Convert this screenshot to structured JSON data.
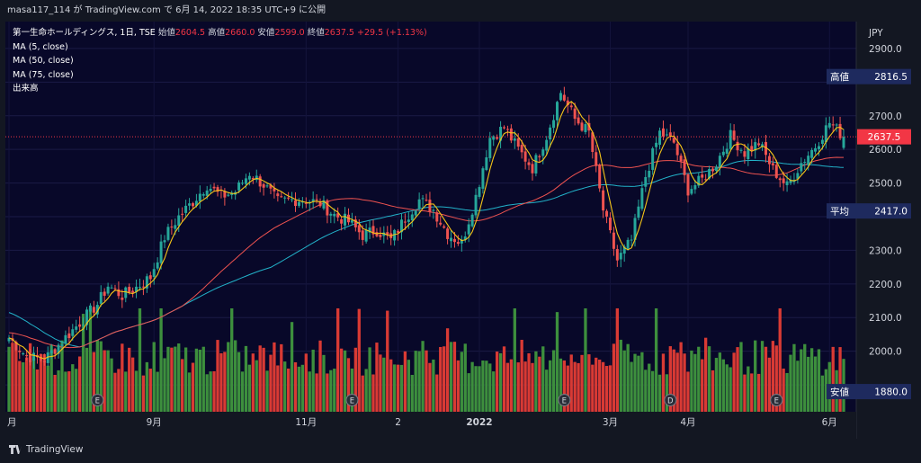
{
  "header": {
    "publish_line": "masa117_114 が TradingView.com で 6月 14, 2022 18:35 UTC+9 に公開"
  },
  "legend": {
    "symbol": "第一生命ホールディングス, 1日, TSE",
    "open_label": "始値",
    "open": "2604.5",
    "high_label": "高値",
    "high": "2660.0",
    "low_label": "安値",
    "low": "2599.0",
    "close_label": "終値",
    "close": "2637.5",
    "change": "+29.5 (+1.13%)",
    "indicators": [
      "MA (5, close)",
      "MA (50, close)",
      "MA (75, close)",
      "出来高"
    ]
  },
  "brand": {
    "name": "TradingView",
    "icon": "tradingview-logo-icon"
  },
  "colors": {
    "background": "#080829",
    "up": "#26a69a",
    "down": "#ef5350",
    "vol_up": "#3d8f3d",
    "vol_down": "#d93a34",
    "ma5": "#f5c518",
    "ma50": "#ef5350",
    "ma75": "#22b2c9",
    "price_tag": "#f23645",
    "label_bg": "#1e2a5e"
  },
  "chart_data": {
    "type": "candlestick",
    "currency": "JPY",
    "y_axis": {
      "ylim": [
        1820,
        2980
      ],
      "ticks": [
        1900,
        2000,
        2100,
        2200,
        2300,
        2400,
        2500,
        2600,
        2700,
        2800,
        2900
      ],
      "tick_labels": [
        "",
        "2000.0",
        "2100.0",
        "2200.0",
        "2300.0",
        "",
        "2500.0",
        "2600.0",
        "2700.0",
        "",
        "2900.0"
      ]
    },
    "x_axis": {
      "labels": [
        "月",
        "9月",
        "11月",
        "2",
        "2022",
        "3月",
        "4月",
        "6月"
      ]
    },
    "price_labels": [
      {
        "name": "高値",
        "value": "2816.5",
        "y": 2816.5
      },
      {
        "name": "",
        "value": "2637.5",
        "y": 2637.5,
        "style": "current"
      },
      {
        "name": "平均",
        "value": "2417.0",
        "y": 2417
      },
      {
        "name": "安値",
        "value": "1880.0",
        "y": 1880
      }
    ],
    "events": [
      {
        "date_index": 25,
        "letter": "E"
      },
      {
        "date_index": 97,
        "letter": "E"
      },
      {
        "date_index": 157,
        "letter": "E"
      },
      {
        "date_index": 187,
        "letter": "D"
      },
      {
        "date_index": 217,
        "letter": "E"
      }
    ],
    "close_anchors": [
      [
        0,
        2040
      ],
      [
        5,
        1985
      ],
      [
        10,
        1975
      ],
      [
        15,
        2030
      ],
      [
        20,
        2085
      ],
      [
        25,
        2140
      ],
      [
        28,
        2195
      ],
      [
        32,
        2165
      ],
      [
        36,
        2190
      ],
      [
        40,
        2220
      ],
      [
        44,
        2340
      ],
      [
        48,
        2400
      ],
      [
        52,
        2445
      ],
      [
        56,
        2495
      ],
      [
        60,
        2460
      ],
      [
        64,
        2475
      ],
      [
        68,
        2530
      ],
      [
        72,
        2495
      ],
      [
        76,
        2445
      ],
      [
        80,
        2450
      ],
      [
        84,
        2450
      ],
      [
        88,
        2440
      ],
      [
        92,
        2405
      ],
      [
        96,
        2385
      ],
      [
        100,
        2345
      ],
      [
        104,
        2360
      ],
      [
        108,
        2330
      ],
      [
        112,
        2395
      ],
      [
        116,
        2450
      ],
      [
        120,
        2420
      ],
      [
        124,
        2350
      ],
      [
        128,
        2320
      ],
      [
        132,
        2460
      ],
      [
        136,
        2635
      ],
      [
        140,
        2665
      ],
      [
        144,
        2600
      ],
      [
        148,
        2545
      ],
      [
        152,
        2640
      ],
      [
        156,
        2770
      ],
      [
        160,
        2690
      ],
      [
        164,
        2650
      ],
      [
        168,
        2420
      ],
      [
        172,
        2270
      ],
      [
        176,
        2330
      ],
      [
        180,
        2520
      ],
      [
        184,
        2650
      ],
      [
        188,
        2620
      ],
      [
        192,
        2480
      ],
      [
        196,
        2510
      ],
      [
        200,
        2560
      ],
      [
        204,
        2640
      ],
      [
        208,
        2590
      ],
      [
        212,
        2620
      ],
      [
        216,
        2540
      ],
      [
        220,
        2490
      ],
      [
        224,
        2560
      ],
      [
        228,
        2610
      ],
      [
        232,
        2680
      ],
      [
        236,
        2637.5
      ]
    ],
    "volume_scale_max": 1.0
  }
}
